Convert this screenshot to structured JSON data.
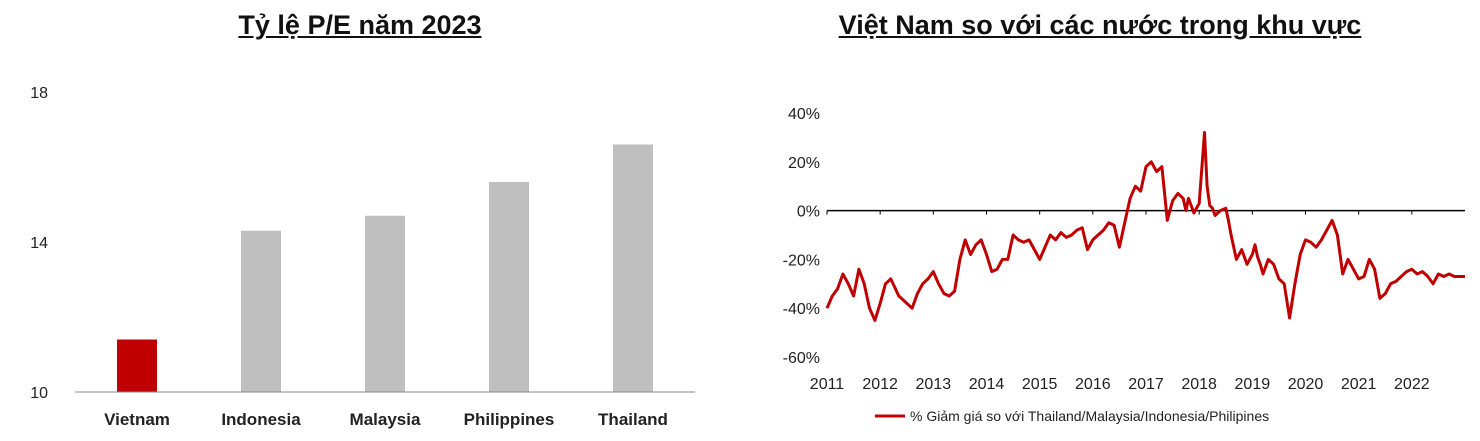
{
  "chart_data": [
    {
      "type": "bar",
      "title": "Tỷ lệ P/E năm 2023",
      "categories": [
        "Vietnam",
        "Indonesia",
        "Malaysia",
        "Philippines",
        "Thailand"
      ],
      "values": [
        11.4,
        14.3,
        14.7,
        15.6,
        16.6
      ],
      "ylim": [
        10,
        18
      ],
      "yticks": [
        "10",
        "14",
        "18"
      ],
      "colors": [
        "#c00000",
        "#bfbfbf",
        "#bfbfbf",
        "#bfbfbf",
        "#bfbfbf"
      ]
    },
    {
      "type": "line",
      "title": "Việt Nam so với các nước trong khu vực",
      "ylim": [
        -0.6,
        0.4
      ],
      "yticks": [
        "-60%",
        "-40%",
        "-20%",
        "0%",
        "20%",
        "40%"
      ],
      "xticks": [
        "2011",
        "2012",
        "2013",
        "2014",
        "2015",
        "2016",
        "2017",
        "2018",
        "2019",
        "2020",
        "2021",
        "2022"
      ],
      "xlim": [
        2011,
        2023
      ],
      "series": [
        {
          "name": "% Giảm giá so với Thailand/Malaysia/Indonesia/Philipines",
          "color": "#c00000",
          "x": [
            2011.0,
            2011.1,
            2011.2,
            2011.3,
            2011.4,
            2011.5,
            2011.6,
            2011.7,
            2011.8,
            2011.9,
            2012.0,
            2012.1,
            2012.2,
            2012.35,
            2012.5,
            2012.6,
            2012.7,
            2012.8,
            2012.9,
            2013.0,
            2013.1,
            2013.2,
            2013.3,
            2013.4,
            2013.5,
            2013.6,
            2013.7,
            2013.8,
            2013.9,
            2014.0,
            2014.1,
            2014.2,
            2014.3,
            2014.4,
            2014.5,
            2014.6,
            2014.7,
            2014.8,
            2014.9,
            2015.0,
            2015.1,
            2015.2,
            2015.3,
            2015.4,
            2015.5,
            2015.6,
            2015.7,
            2015.8,
            2015.9,
            2016.0,
            2016.1,
            2016.2,
            2016.3,
            2016.4,
            2016.5,
            2016.6,
            2016.7,
            2016.8,
            2016.9,
            2017.0,
            2017.1,
            2017.2,
            2017.3,
            2017.4,
            2017.5,
            2017.6,
            2017.7,
            2017.75,
            2017.8,
            2017.9,
            2018.0,
            2018.1,
            2018.15,
            2018.2,
            2018.25,
            2018.3,
            2018.4,
            2018.5,
            2018.55,
            2018.6,
            2018.7,
            2018.8,
            2018.9,
            2019.0,
            2019.05,
            2019.1,
            2019.15,
            2019.2,
            2019.3,
            2019.4,
            2019.5,
            2019.6,
            2019.7,
            2019.8,
            2019.9,
            2020.0,
            2020.1,
            2020.2,
            2020.3,
            2020.4,
            2020.5,
            2020.6,
            2020.7,
            2020.8,
            2020.9,
            2021.0,
            2021.1,
            2021.2,
            2021.3,
            2021.4,
            2021.5,
            2021.6,
            2021.7,
            2021.8,
            2021.9,
            2022.0,
            2022.1,
            2022.2,
            2022.3,
            2022.4,
            2022.5,
            2022.6,
            2022.7,
            2022.8,
            2022.9,
            2023.0
          ],
          "y": [
            -0.4,
            -0.35,
            -0.32,
            -0.26,
            -0.3,
            -0.35,
            -0.24,
            -0.3,
            -0.4,
            -0.45,
            -0.38,
            -0.3,
            -0.28,
            -0.35,
            -0.38,
            -0.4,
            -0.34,
            -0.3,
            -0.28,
            -0.25,
            -0.3,
            -0.34,
            -0.35,
            -0.33,
            -0.2,
            -0.12,
            -0.18,
            -0.14,
            -0.12,
            -0.18,
            -0.25,
            -0.24,
            -0.2,
            -0.2,
            -0.1,
            -0.12,
            -0.13,
            -0.12,
            -0.16,
            -0.2,
            -0.15,
            -0.1,
            -0.12,
            -0.09,
            -0.11,
            -0.1,
            -0.08,
            -0.07,
            -0.16,
            -0.12,
            -0.1,
            -0.08,
            -0.05,
            -0.06,
            -0.15,
            -0.05,
            0.05,
            0.1,
            0.08,
            0.18,
            0.2,
            0.16,
            0.18,
            -0.04,
            0.04,
            0.07,
            0.05,
            0.0,
            0.05,
            -0.01,
            0.03,
            0.32,
            0.1,
            0.02,
            0.01,
            -0.02,
            0.0,
            0.01,
            -0.04,
            -0.1,
            -0.2,
            -0.16,
            -0.22,
            -0.18,
            -0.14,
            -0.19,
            -0.22,
            -0.26,
            -0.2,
            -0.22,
            -0.28,
            -0.3,
            -0.44,
            -0.3,
            -0.18,
            -0.12,
            -0.13,
            -0.15,
            -0.12,
            -0.08,
            -0.04,
            -0.1,
            -0.26,
            -0.2,
            -0.24,
            -0.28,
            -0.27,
            -0.2,
            -0.24,
            -0.36,
            -0.34,
            -0.3,
            -0.29,
            -0.27,
            -0.25,
            -0.24,
            -0.26,
            -0.25,
            -0.27,
            -0.3,
            -0.26,
            -0.27,
            -0.26,
            -0.27,
            -0.27,
            -0.27
          ]
        }
      ]
    }
  ]
}
